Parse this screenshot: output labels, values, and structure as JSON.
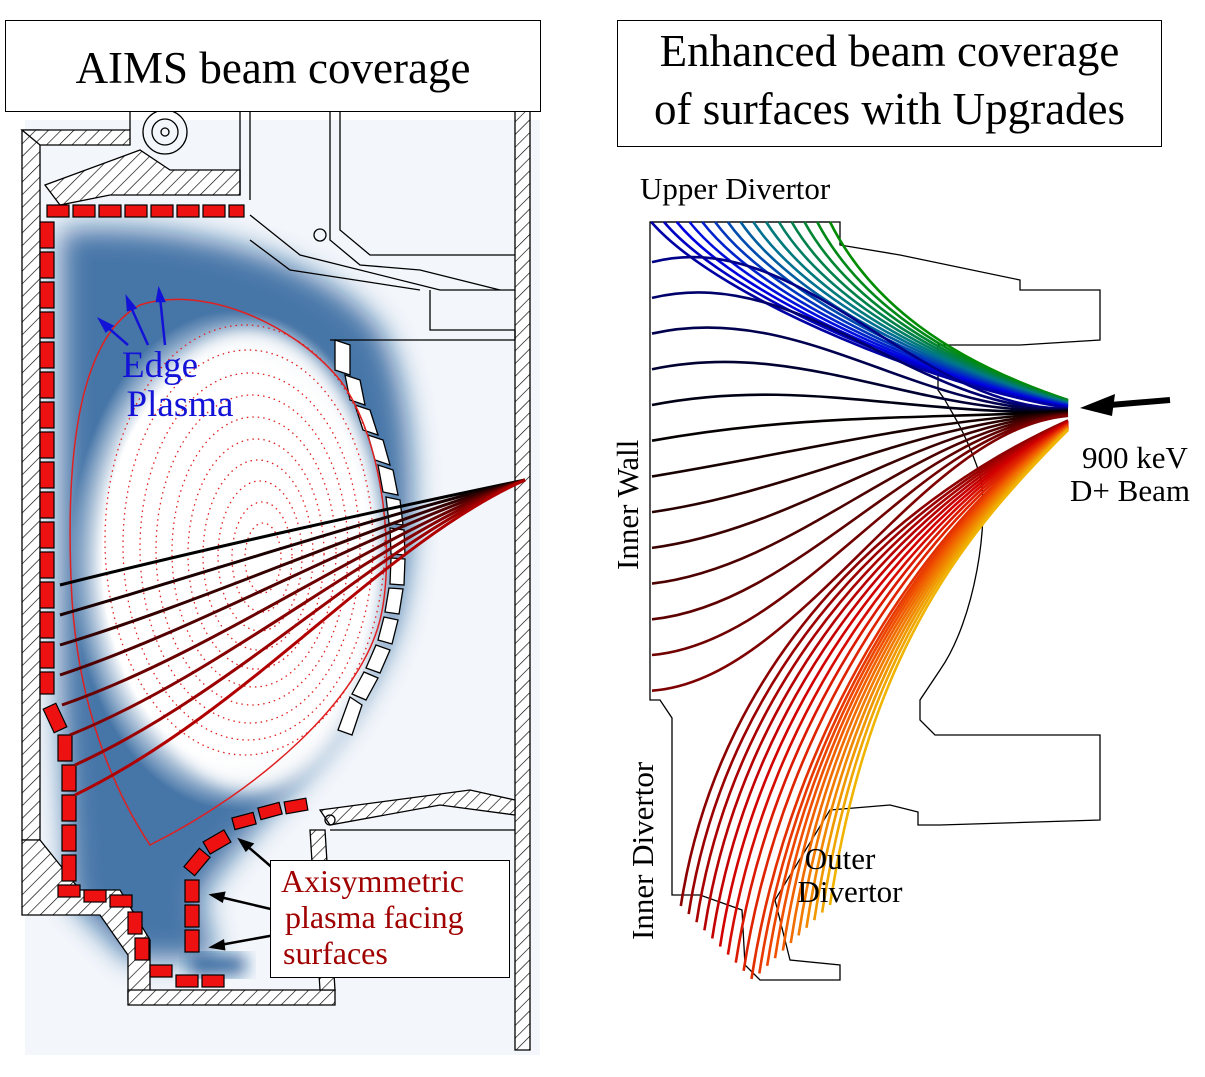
{
  "left_panel": {
    "title": "AIMS beam coverage",
    "edge_plasma_line1": "Edge",
    "edge_plasma_line2": "Plasma",
    "callout_line1": "Axisymmetric",
    "callout_line2": "plasma facing",
    "callout_line3": "surfaces"
  },
  "right_panel": {
    "title_line1": "Enhanced beam coverage",
    "title_line2": "of surfaces with Upgrades",
    "upper_divertor": "Upper Divertor",
    "inner_wall": "Inner Wall",
    "inner_divertor": "Inner Divertor",
    "outer_divertor_line1": "Outer",
    "outer_divertor_line2": "Divertor",
    "beam_line1": "900 keV",
    "beam_line2": "D+ Beam"
  },
  "colors": {
    "tile_red": "#ee1111",
    "flux_red": "#e02020",
    "coverage_blue": "#0a4c8c",
    "edge_label_blue": "#1313d8",
    "callout_text_red": "#a00000"
  }
}
